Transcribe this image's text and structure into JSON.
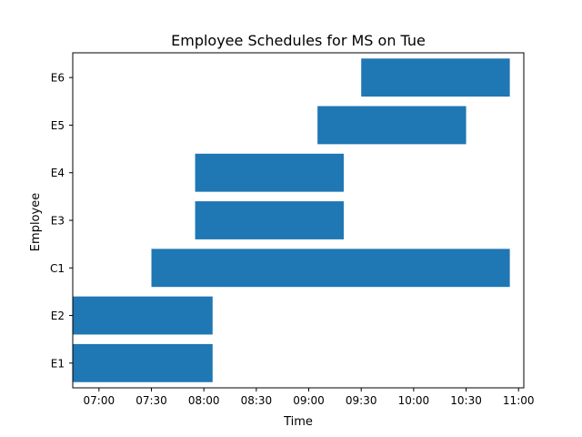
{
  "chart_data": {
    "type": "bar",
    "orientation": "horizontal",
    "title": "Employee Schedules for MS on Tue",
    "xlabel": "Time",
    "ylabel": "Employee",
    "bar_color": "#1f77b4",
    "x_axis_unit": "time of day",
    "xlim": [
      "06:45",
      "11:03"
    ],
    "xticks": [
      "07:00",
      "07:30",
      "08:00",
      "08:30",
      "09:00",
      "09:30",
      "10:00",
      "10:30",
      "11:00"
    ],
    "categories": [
      "E1",
      "E2",
      "C1",
      "E3",
      "E4",
      "E5",
      "E6"
    ],
    "shifts": [
      {
        "employee": "E1",
        "start": "06:45",
        "end": "08:05"
      },
      {
        "employee": "E2",
        "start": "06:45",
        "end": "08:05"
      },
      {
        "employee": "C1",
        "start": "07:30",
        "end": "10:55"
      },
      {
        "employee": "E3",
        "start": "07:55",
        "end": "09:20"
      },
      {
        "employee": "E4",
        "start": "07:55",
        "end": "09:20"
      },
      {
        "employee": "E5",
        "start": "09:05",
        "end": "10:30"
      },
      {
        "employee": "E6",
        "start": "09:30",
        "end": "10:55"
      }
    ],
    "grid": false,
    "legend": "none"
  }
}
